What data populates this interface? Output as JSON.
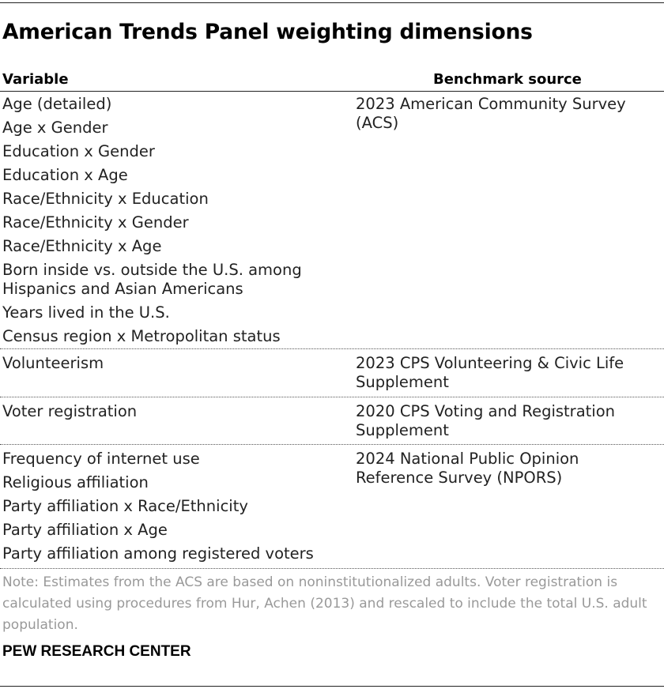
{
  "title": "American Trends Panel weighting dimensions",
  "columns": {
    "variable": "Variable",
    "source": "Benchmark source"
  },
  "groups": [
    {
      "variables": [
        "Age (detailed)",
        "Age x Gender",
        "Education x Gender",
        "Education x Age",
        "Race/Ethnicity x Education",
        "Race/Ethnicity x Gender",
        "Race/Ethnicity x Age",
        "Born inside vs. outside the U.S. among Hispanics and Asian Americans",
        "Years lived in the U.S.",
        "Census region x Metropolitan status"
      ],
      "source": "2023 American Community Survey (ACS)"
    },
    {
      "variables": [
        "Volunteerism"
      ],
      "source": "2023 CPS Volunteering & Civic Life Supplement"
    },
    {
      "variables": [
        "Voter registration"
      ],
      "source": "2020 CPS Voting and Registration Supplement"
    },
    {
      "variables": [
        "Frequency of internet use",
        "Religious affiliation",
        "Party affiliation x Race/Ethnicity",
        "Party affiliation x Age",
        "Party affiliation among registered voters"
      ],
      "source": "2024 National Public Opinion Reference Survey (NPORS)"
    }
  ],
  "note": "Note: Estimates from the ACS are based on noninstitutionalized adults. Voter registration is calculated using procedures from Hur, Achen (2013) and rescaled to include the total U.S. adult population.",
  "organization": "PEW RESEARCH CENTER"
}
